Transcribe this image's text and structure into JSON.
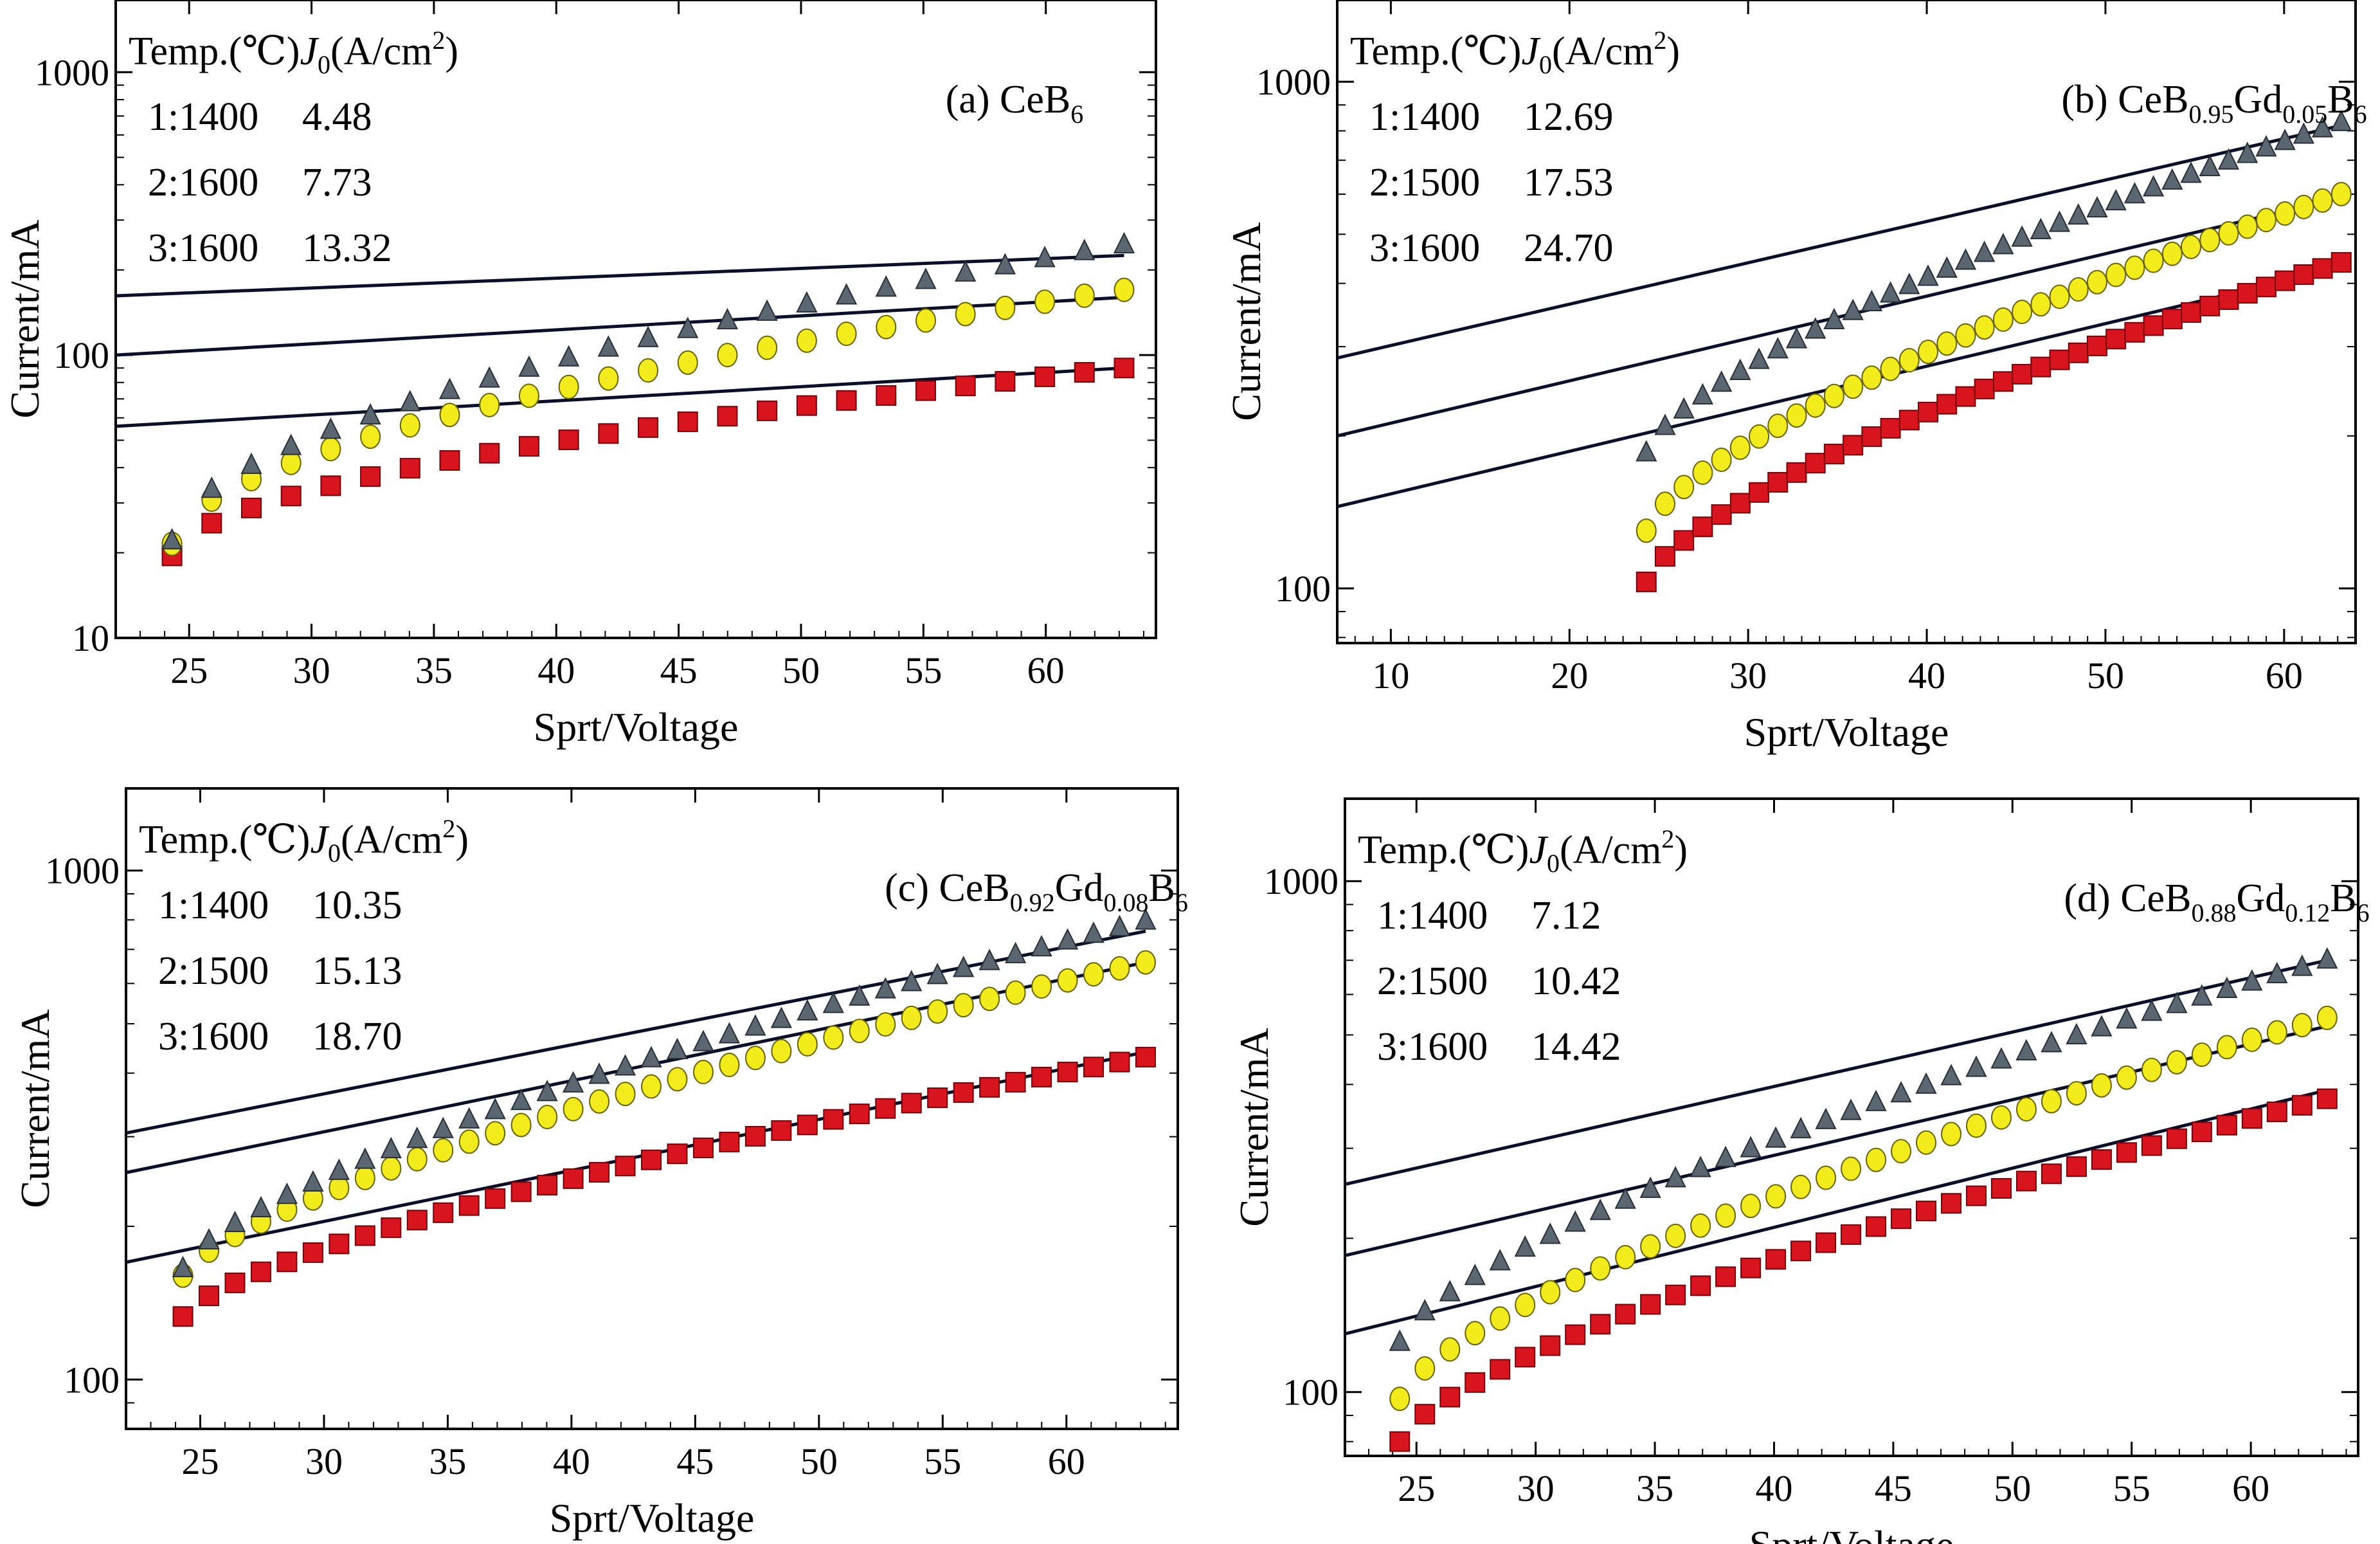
{
  "figure": {
    "colors": {
      "triangle": "#5a6670",
      "circle": "#f2ec1c",
      "square": "#d8141e",
      "fit_line": "#0a0f2a"
    }
  },
  "chart_data": [
    {
      "type": "scatter",
      "title_prefix": "(a) CeB",
      "title_subs": [
        {
          "sub": "6",
          "text": ""
        }
      ],
      "xlabel": "Sprt/Voltage",
      "ylabel": "Current/mA",
      "xlim": [
        22,
        64.5
      ],
      "ylim": [
        10,
        1800
      ],
      "log_y": true,
      "x_ticks": [
        "25",
        "30",
        "35",
        "40",
        "45",
        "50",
        "55",
        "60"
      ],
      "y_ticks": [
        "10",
        "100",
        "1000"
      ],
      "legend_header": "Temp.(℃)J0(A/cm2)",
      "legend": [
        {
          "label": "1:1400",
          "value": "4.48"
        },
        {
          "label": "2:1600",
          "value": "7.73"
        },
        {
          "label": "3:1600",
          "value": "13.32"
        }
      ],
      "fits": [
        [
          56,
          90
        ],
        [
          100,
          160
        ],
        [
          162,
          225
        ]
      ],
      "triangle": {
        "start": 22.0,
        "end": 245
      },
      "circle": {
        "start": 21.5,
        "end": 170
      },
      "square": {
        "start": 19.5,
        "end": 90
      }
    },
    {
      "type": "scatter",
      "title_prefix": "(b) CeB",
      "title_subs": [
        {
          "sub": "0.95",
          "text": "Gd"
        },
        {
          "sub": "0.05",
          "text": "B"
        },
        {
          "sub": "6",
          "text": ""
        }
      ],
      "xlabel": "Sprt/Voltage",
      "ylabel": "Current/mA",
      "xlim": [
        7,
        64
      ],
      "ylim": [
        78,
        1450
      ],
      "log_y": true,
      "x_ticks": [
        "10",
        "20",
        "30",
        "40",
        "50",
        "60"
      ],
      "y_ticks": [
        "100",
        "1000"
      ],
      "legend_header": "Temp.(℃)J0(A/cm2)",
      "legend": [
        {
          "label": "1:1400",
          "value": "12.69"
        },
        {
          "label": "2:1500",
          "value": "17.53"
        },
        {
          "label": "3:1600",
          "value": "24.70"
        }
      ],
      "fits": [
        [
          145,
          430
        ],
        [
          200,
          590
        ],
        [
          285,
          820
        ]
      ],
      "triangle": {
        "start": 185,
        "end": 830
      },
      "circle": {
        "start": 130,
        "end": 600
      },
      "square": {
        "start": 103,
        "end": 440
      }
    },
    {
      "type": "scatter",
      "title_prefix": "(c) CeB",
      "title_subs": [
        {
          "sub": "0.92",
          "text": "Gd"
        },
        {
          "sub": "0.08",
          "text": "B"
        },
        {
          "sub": "6",
          "text": ""
        }
      ],
      "xlabel": "Sprt/Voltage",
      "ylabel": "Current/mA",
      "xlim": [
        22,
        64.5
      ],
      "ylim": [
        80,
        1450
      ],
      "log_y": true,
      "x_ticks": [
        "25",
        "30",
        "35",
        "40",
        "45",
        "50",
        "55",
        "60"
      ],
      "y_ticks": [
        "100",
        "1000"
      ],
      "legend_header": "Temp.(℃)J0(A/cm2)",
      "legend": [
        {
          "label": "1:1400",
          "value": "10.35"
        },
        {
          "label": "2:1500",
          "value": "15.13"
        },
        {
          "label": "3:1600",
          "value": "18.70"
        }
      ],
      "fits": [
        [
          170,
          440
        ],
        [
          255,
          660
        ],
        [
          305,
          760
        ]
      ],
      "triangle": {
        "start": 165,
        "end": 795
      },
      "circle": {
        "start": 160,
        "end": 660
      },
      "square": {
        "start": 133,
        "end": 430
      }
    },
    {
      "type": "scatter",
      "title_prefix": "(d) CeB",
      "title_subs": [
        {
          "sub": "0.88",
          "text": "Gd"
        },
        {
          "sub": "0.12",
          "text": "B"
        },
        {
          "sub": "6",
          "text": ""
        }
      ],
      "xlabel": "Sprt/Voltage",
      "ylabel": "Current/mA",
      "xlim": [
        22,
        64.5
      ],
      "ylim": [
        75,
        1450
      ],
      "log_y": true,
      "x_ticks": [
        "25",
        "30",
        "35",
        "40",
        "45",
        "50",
        "55",
        "60"
      ],
      "y_ticks": [
        "100",
        "1000"
      ],
      "legend_header": "Temp.(℃)J0(A/cm2)",
      "legend": [
        {
          "label": "1:1400",
          "value": "7.12"
        },
        {
          "label": "2:1500",
          "value": "10.42"
        },
        {
          "label": "3:1600",
          "value": "14.42"
        }
      ],
      "fits": [
        [
          130,
          390
        ],
        [
          185,
          520
        ],
        [
          255,
          700
        ]
      ],
      "triangle": {
        "start": 125,
        "end": 700
      },
      "circle": {
        "start": 97,
        "end": 540
      },
      "square": {
        "start": 80,
        "end": 375
      }
    }
  ]
}
